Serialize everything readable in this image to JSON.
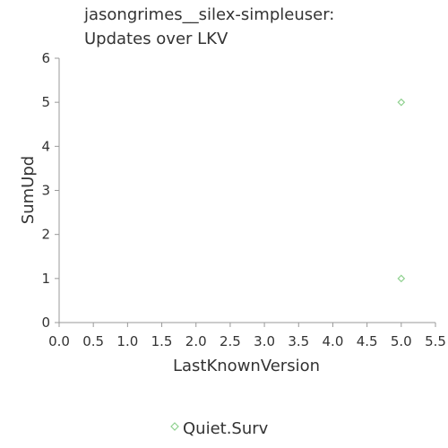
{
  "chart_data": {
    "type": "scatter",
    "title_lines": [
      "jasongrimes__silex-simpleuser:",
      "Updates over LKV"
    ],
    "xlabel": "LastKnownVersion",
    "ylabel": "SumUpd",
    "xlim": [
      0,
      5.5
    ],
    "ylim": [
      0,
      6
    ],
    "x_ticks": [
      "0.0",
      "0.5",
      "1.0",
      "1.5",
      "2.0",
      "2.5",
      "3.0",
      "3.5",
      "4.0",
      "4.5",
      "5.0",
      "5.5"
    ],
    "y_ticks": [
      "0",
      "1",
      "2",
      "3",
      "4",
      "5",
      "6"
    ],
    "grid": false,
    "legend_position": "bottom-center",
    "series": [
      {
        "name": "Quiet.Surv",
        "color": "#8fd18f",
        "marker": "diamond-open",
        "points": [
          {
            "x": 5.0,
            "y": 5
          },
          {
            "x": 5.0,
            "y": 1
          }
        ]
      }
    ]
  }
}
